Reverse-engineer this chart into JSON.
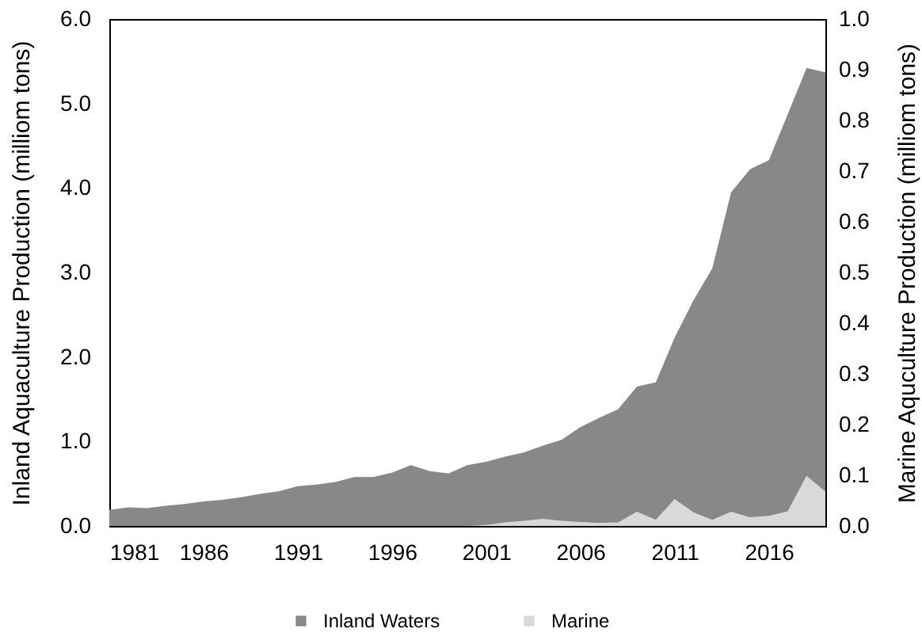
{
  "chart_data": {
    "type": "area",
    "ylabel": "Inland Aquaculture Production (milliom tons)",
    "y2label": "Marine Aquculture Production (milliom tons)",
    "x": [
      1981,
      1982,
      1983,
      1984,
      1985,
      1986,
      1987,
      1988,
      1989,
      1990,
      1991,
      1992,
      1993,
      1994,
      1995,
      1996,
      1997,
      1998,
      1999,
      2000,
      2001,
      2002,
      2003,
      2004,
      2005,
      2006,
      2007,
      2008,
      2009,
      2010,
      2011,
      2012,
      2013,
      2014,
      2015,
      2016,
      2017,
      2018,
      2019
    ],
    "series": [
      {
        "name": "Inland Waters",
        "color": "#888888",
        "values": [
          0.19,
          0.22,
          0.21,
          0.24,
          0.26,
          0.29,
          0.31,
          0.34,
          0.38,
          0.41,
          0.47,
          0.49,
          0.52,
          0.58,
          0.58,
          0.63,
          0.72,
          0.65,
          0.62,
          0.72,
          0.76,
          0.82,
          0.87,
          0.95,
          1.02,
          1.17,
          1.28,
          1.38,
          1.65,
          1.7,
          2.23,
          2.67,
          3.05,
          3.95,
          4.22,
          4.33,
          4.87,
          5.42,
          5.37
        ]
      },
      {
        "name": "Marine",
        "color": "#d9d9d9",
        "axis": "y2",
        "values": [
          0,
          0,
          0,
          0,
          0,
          0,
          0,
          0,
          0,
          0,
          0,
          0,
          0,
          0,
          0,
          0,
          0,
          0,
          0,
          0,
          0.002,
          0.007,
          0.01,
          0.014,
          0.01,
          0.008,
          0.006,
          0.007,
          0.028,
          0.012,
          0.053,
          0.027,
          0.012,
          0.028,
          0.017,
          0.02,
          0.029,
          0.099,
          0.068
        ]
      }
    ],
    "xlim": [
      1981,
      2019
    ],
    "xticks": [
      1981,
      1986,
      1991,
      1996,
      2001,
      2006,
      2011,
      2016
    ],
    "ylim": [
      0,
      6
    ],
    "yticks": [
      {
        "value": 0,
        "label": "0.0"
      },
      {
        "value": 1,
        "label": "1.0"
      },
      {
        "value": 2,
        "label": "2.0"
      },
      {
        "value": 3,
        "label": "3.0"
      },
      {
        "value": 4,
        "label": "4.0"
      },
      {
        "value": 5,
        "label": "5.0"
      },
      {
        "value": 6,
        "label": "6.0"
      }
    ],
    "y2lim": [
      0,
      1
    ],
    "y2ticks": [
      {
        "value": 0,
        "label": "0.0"
      },
      {
        "value": 0.1,
        "label": "0.1"
      },
      {
        "value": 0.2,
        "label": "0.2"
      },
      {
        "value": 0.3,
        "label": "0.3"
      },
      {
        "value": 0.4,
        "label": "0.4"
      },
      {
        "value": 0.5,
        "label": "0.5"
      },
      {
        "value": 0.6,
        "label": "0.6"
      },
      {
        "value": 0.7,
        "label": "0.7"
      },
      {
        "value": 0.8,
        "label": "0.8"
      },
      {
        "value": 0.9,
        "label": "0.9"
      },
      {
        "value": 1,
        "label": "1.0"
      }
    ],
    "legend": "bottom"
  }
}
